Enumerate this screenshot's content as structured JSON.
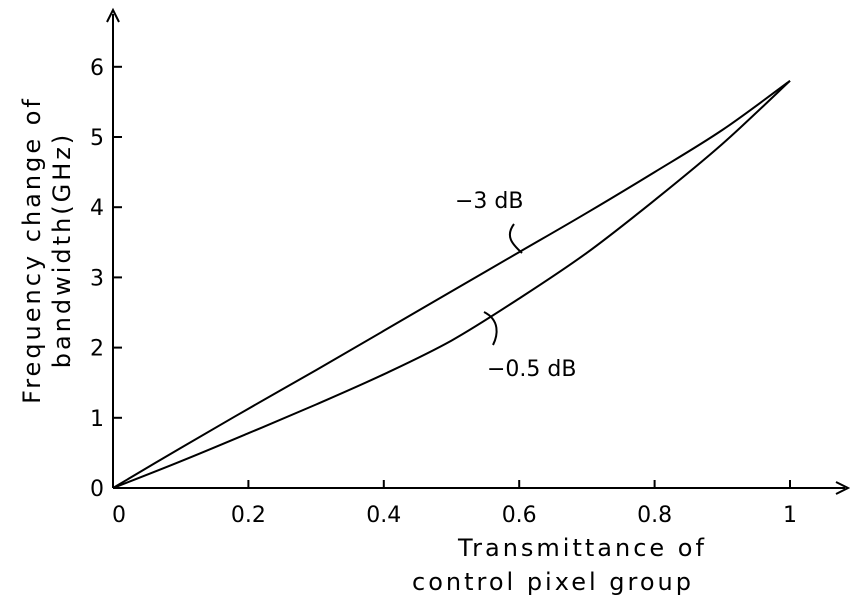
{
  "chart_data": {
    "type": "line",
    "xlabel_lines": [
      "Transmittance of",
      "control pixel group"
    ],
    "ylabel_lines": [
      "Frequency change of",
      "bandwidth(GHz)"
    ],
    "xlim": [
      0,
      1.1
    ],
    "ylim": [
      0,
      7
    ],
    "x_ticks": [
      0,
      0.2,
      0.4,
      0.6,
      0.8,
      1
    ],
    "x_tick_labels": [
      "0",
      "0.2",
      "0.4",
      "0.6",
      "0.8",
      "1"
    ],
    "y_ticks": [
      0,
      1,
      2,
      3,
      4,
      5,
      6
    ],
    "y_tick_labels": [
      "0",
      "1",
      "2",
      "3",
      "4",
      "5",
      "6"
    ],
    "grid": false,
    "series": [
      {
        "name": "−3 dB",
        "x": [
          0,
          0.1,
          0.2,
          0.3,
          0.4,
          0.5,
          0.6,
          0.7,
          0.8,
          0.9,
          1.0
        ],
        "y": [
          0,
          0.57,
          1.13,
          1.68,
          2.24,
          2.8,
          3.36,
          3.92,
          4.5,
          5.1,
          5.8
        ]
      },
      {
        "name": "−0.5 dB",
        "x": [
          0,
          0.1,
          0.2,
          0.3,
          0.4,
          0.5,
          0.6,
          0.7,
          0.8,
          0.9,
          1.0
        ],
        "y": [
          0,
          0.38,
          0.78,
          1.19,
          1.62,
          2.1,
          2.7,
          3.35,
          4.1,
          4.9,
          5.8
        ]
      }
    ]
  }
}
